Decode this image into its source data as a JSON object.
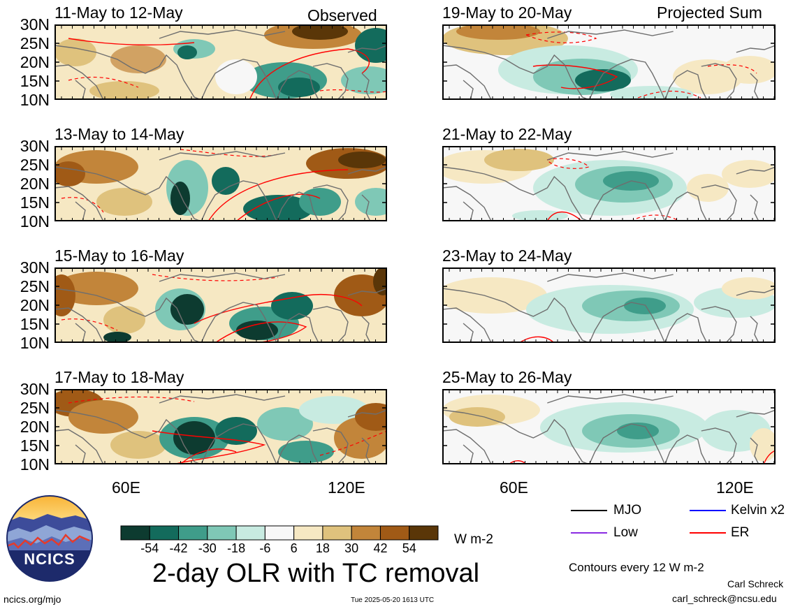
{
  "figure_title": "2-day OLR with TC removal",
  "columns": {
    "left_label": "Observed",
    "right_label": "Projected Sum"
  },
  "panels": [
    {
      "id": "p1",
      "title": "11-May to 12-May",
      "col": "left",
      "row": 0
    },
    {
      "id": "p2",
      "title": "13-May to 14-May",
      "col": "left",
      "row": 1
    },
    {
      "id": "p3",
      "title": "15-May to 16-May",
      "col": "left",
      "row": 2
    },
    {
      "id": "p4",
      "title": "17-May to 18-May",
      "col": "left",
      "row": 3
    },
    {
      "id": "p5",
      "title": "19-May to 20-May",
      "col": "right",
      "row": 0
    },
    {
      "id": "p6",
      "title": "21-May to 22-May",
      "col": "right",
      "row": 1
    },
    {
      "id": "p7",
      "title": "23-May to 24-May",
      "col": "right",
      "row": 2
    },
    {
      "id": "p8",
      "title": "25-May to 26-May",
      "col": "right",
      "row": 3
    }
  ],
  "axes": {
    "lat_ticks": [
      "30N",
      "25N",
      "20N",
      "15N",
      "10N"
    ],
    "lon_ticks": [
      "60E",
      "120E"
    ]
  },
  "colorbar": {
    "colors": [
      "#0d3b30",
      "#136b5c",
      "#3f9d8a",
      "#7fc8b6",
      "#c8ebe1",
      "#f7f7f7",
      "#f6e8c3",
      "#dfc27d",
      "#c2853a",
      "#a05a16",
      "#5a3608"
    ],
    "labels": [
      "-54",
      "-42",
      "-30",
      "-18",
      "-6",
      "6",
      "18",
      "30",
      "42",
      "54"
    ],
    "units": "W m-2"
  },
  "legend": [
    {
      "label": "MJO",
      "color": "#000000"
    },
    {
      "label": "Kelvin x2",
      "color": "#0000ff"
    },
    {
      "label": "Low",
      "color": "#8a2be2"
    },
    {
      "label": "ER",
      "color": "#ff0000"
    }
  ],
  "contour_note": "Contours every 12 W m-2",
  "author": "Carl Schreck",
  "email": "carl_schreck@ncsu.edu",
  "site": "ncics.org/mjo",
  "timestamp": "Tue 2025-05-20 1613 UTC",
  "logo_text": "NCICS"
}
